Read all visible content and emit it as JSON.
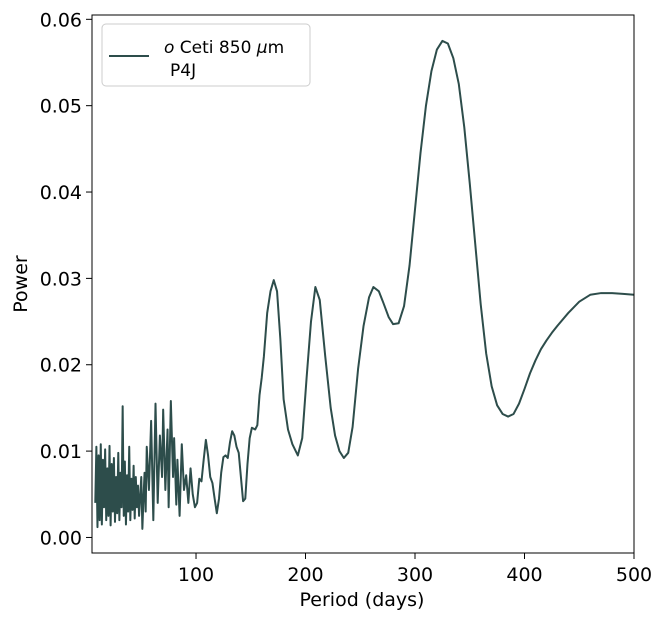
{
  "chart_data": {
    "type": "line",
    "xlabel": "Period (days)",
    "ylabel": "Power",
    "xlim": [
      5,
      500
    ],
    "ylim": [
      -0.0018,
      0.0605
    ],
    "xticks": [
      100,
      200,
      300,
      400,
      500
    ],
    "xtick_labels": [
      "100",
      "200",
      "300",
      "400",
      "500"
    ],
    "yticks": [
      0.0,
      0.01,
      0.02,
      0.03,
      0.04,
      0.05,
      0.06
    ],
    "ytick_labels": [
      "0.00",
      "0.01",
      "0.02",
      "0.03",
      "0.04",
      "0.05",
      "0.06"
    ],
    "grid": false,
    "legend": {
      "placement": "upper-left",
      "line1_pre": "o",
      "line1_post": " Ceti 850 ",
      "line1_mu": "μ",
      "line1_end": "m",
      "line2": "P4J"
    },
    "line_color": "#2d4d4b",
    "series": [
      {
        "name": "o Ceti 850 μm P4J",
        "points": [
          [
            8,
            0.004
          ],
          [
            9,
            0.0105
          ],
          [
            10,
            0.0012
          ],
          [
            11,
            0.0095
          ],
          [
            12,
            0.002
          ],
          [
            13,
            0.0108
          ],
          [
            14,
            0.0015
          ],
          [
            15,
            0.009
          ],
          [
            16,
            0.0035
          ],
          [
            17,
            0.0102
          ],
          [
            18,
            0.002
          ],
          [
            19,
            0.008
          ],
          [
            20,
            0.0025
          ],
          [
            21,
            0.0106
          ],
          [
            22,
            0.0014
          ],
          [
            23,
            0.0085
          ],
          [
            24,
            0.003
          ],
          [
            25,
            0.0092
          ],
          [
            26,
            0.0018
          ],
          [
            27,
            0.007
          ],
          [
            28,
            0.0028
          ],
          [
            29,
            0.0098
          ],
          [
            30,
            0.002
          ],
          [
            31,
            0.0075
          ],
          [
            32,
            0.0035
          ],
          [
            33,
            0.0152
          ],
          [
            34,
            0.0025
          ],
          [
            35,
            0.0088
          ],
          [
            36,
            0.0015
          ],
          [
            37,
            0.0072
          ],
          [
            38,
            0.003
          ],
          [
            39,
            0.0105
          ],
          [
            40,
            0.002
          ],
          [
            41,
            0.0068
          ],
          [
            42,
            0.0032
          ],
          [
            43,
            0.0083
          ],
          [
            44,
            0.0022
          ],
          [
            45,
            0.007
          ],
          [
            46,
            0.0035
          ],
          [
            47,
            0.006
          ],
          [
            48,
            0.0025
          ],
          [
            50,
            0.007
          ],
          [
            51,
            0.001
          ],
          [
            52,
            0.0045
          ],
          [
            53,
            0.0075
          ],
          [
            54,
            0.003
          ],
          [
            55,
            0.0105
          ],
          [
            57,
            0.0055
          ],
          [
            59,
            0.0135
          ],
          [
            61,
            0.002
          ],
          [
            63,
            0.0155
          ],
          [
            65,
            0.004
          ],
          [
            67,
            0.0118
          ],
          [
            69,
            0.007
          ],
          [
            70,
            0.0148
          ],
          [
            72,
            0.0055
          ],
          [
            74,
            0.0125
          ],
          [
            75,
            0.0035
          ],
          [
            77,
            0.0158
          ],
          [
            79,
            0.007
          ],
          [
            80,
            0.0115
          ],
          [
            82,
            0.0038
          ],
          [
            83,
            0.009
          ],
          [
            85,
            0.0025
          ],
          [
            87,
            0.0108
          ],
          [
            89,
            0.0055
          ],
          [
            91,
            0.0072
          ],
          [
            93,
            0.004
          ],
          [
            95,
            0.008
          ],
          [
            97,
            0.005
          ],
          [
            99,
            0.0035
          ],
          [
            101,
            0.004
          ],
          [
            103,
            0.0068
          ],
          [
            105,
            0.0065
          ],
          [
            107,
            0.009
          ],
          [
            109,
            0.0113
          ],
          [
            111,
            0.0095
          ],
          [
            113,
            0.007
          ],
          [
            115,
            0.0063
          ],
          [
            117,
            0.0045
          ],
          [
            119,
            0.0028
          ],
          [
            121,
            0.0045
          ],
          [
            123,
            0.0075
          ],
          [
            125,
            0.0093
          ],
          [
            127,
            0.0095
          ],
          [
            129,
            0.0092
          ],
          [
            131,
            0.011
          ],
          [
            133,
            0.0123
          ],
          [
            135,
            0.0118
          ],
          [
            137,
            0.0105
          ],
          [
            139,
            0.0098
          ],
          [
            141,
            0.007
          ],
          [
            143,
            0.0042
          ],
          [
            145,
            0.0045
          ],
          [
            147,
            0.0085
          ],
          [
            149,
            0.0115
          ],
          [
            151,
            0.0127
          ],
          [
            154,
            0.0125
          ],
          [
            156,
            0.013
          ],
          [
            158,
            0.0165
          ],
          [
            160,
            0.0185
          ],
          [
            162,
            0.021
          ],
          [
            165,
            0.026
          ],
          [
            168,
            0.0285
          ],
          [
            171,
            0.0298
          ],
          [
            174,
            0.0285
          ],
          [
            177,
            0.023
          ],
          [
            180,
            0.016
          ],
          [
            184,
            0.0125
          ],
          [
            188,
            0.0108
          ],
          [
            193,
            0.0095
          ],
          [
            197,
            0.0115
          ],
          [
            201,
            0.0185
          ],
          [
            205,
            0.025
          ],
          [
            209,
            0.029
          ],
          [
            213,
            0.0275
          ],
          [
            218,
            0.021
          ],
          [
            223,
            0.015
          ],
          [
            227,
            0.0118
          ],
          [
            231,
            0.01
          ],
          [
            235,
            0.0092
          ],
          [
            239,
            0.0098
          ],
          [
            243,
            0.0128
          ],
          [
            248,
            0.0195
          ],
          [
            253,
            0.0245
          ],
          [
            258,
            0.0278
          ],
          [
            262,
            0.029
          ],
          [
            267,
            0.0285
          ],
          [
            271,
            0.0272
          ],
          [
            276,
            0.0255
          ],
          [
            280,
            0.0247
          ],
          [
            285,
            0.0248
          ],
          [
            290,
            0.0268
          ],
          [
            295,
            0.0315
          ],
          [
            300,
            0.038
          ],
          [
            305,
            0.0445
          ],
          [
            310,
            0.05
          ],
          [
            315,
            0.054
          ],
          [
            320,
            0.0565
          ],
          [
            325,
            0.0575
          ],
          [
            330,
            0.0572
          ],
          [
            335,
            0.0555
          ],
          [
            340,
            0.0525
          ],
          [
            345,
            0.0475
          ],
          [
            350,
            0.041
          ],
          [
            355,
            0.034
          ],
          [
            360,
            0.027
          ],
          [
            365,
            0.0213
          ],
          [
            370,
            0.0175
          ],
          [
            375,
            0.0153
          ],
          [
            380,
            0.0143
          ],
          [
            385,
            0.014
          ],
          [
            390,
            0.0143
          ],
          [
            395,
            0.0155
          ],
          [
            400,
            0.0172
          ],
          [
            405,
            0.019
          ],
          [
            410,
            0.0205
          ],
          [
            415,
            0.0218
          ],
          [
            420,
            0.0228
          ],
          [
            425,
            0.0237
          ],
          [
            430,
            0.0245
          ],
          [
            440,
            0.026
          ],
          [
            450,
            0.0273
          ],
          [
            460,
            0.0281
          ],
          [
            470,
            0.0283
          ],
          [
            480,
            0.0283
          ],
          [
            490,
            0.0282
          ],
          [
            500,
            0.0281
          ]
        ]
      }
    ]
  }
}
